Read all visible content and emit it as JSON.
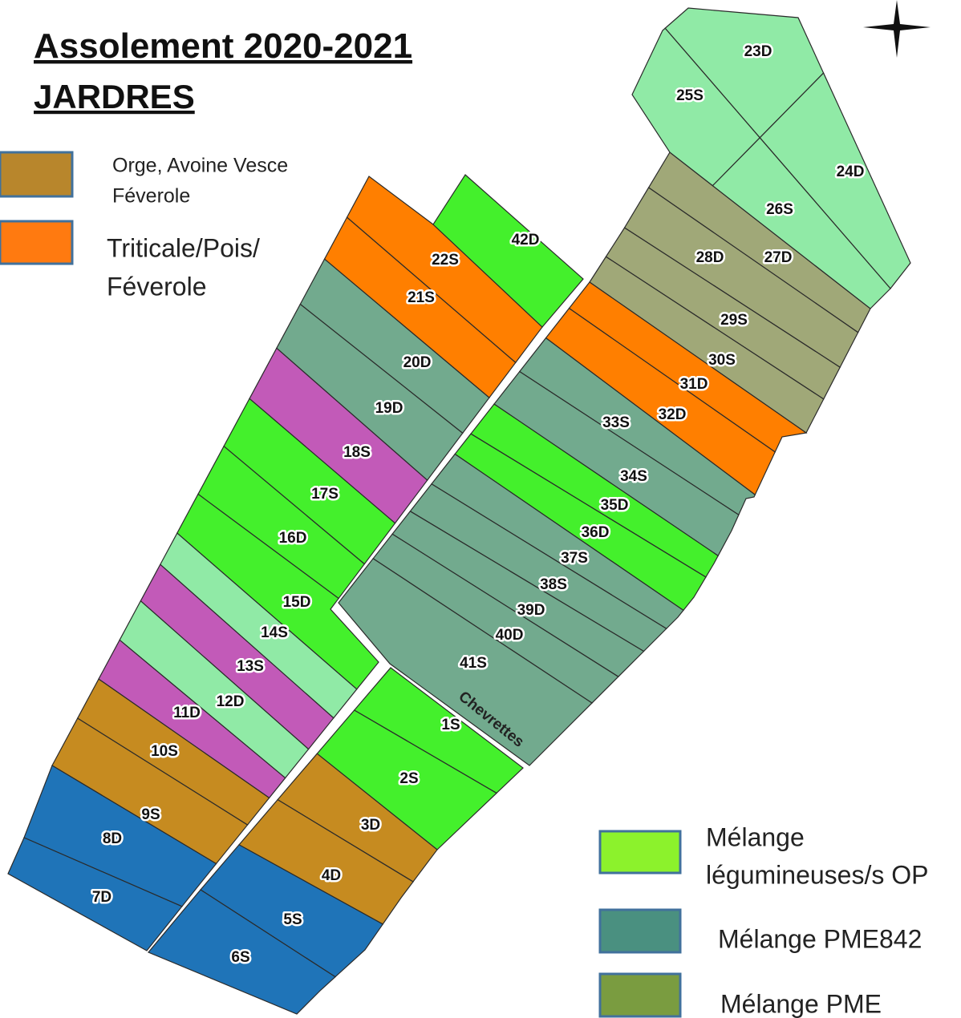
{
  "title": "Assolement 2020-2021",
  "location": "JARDRES",
  "road": "Chevrettes",
  "legend": [
    {
      "lines": [
        "Orge, Avoine Vesce",
        "Féverole"
      ],
      "color": "#b8862c"
    },
    {
      "lines": [
        "Triticale/Pois/",
        "Féverole"
      ],
      "color": "#ff7a10"
    },
    {
      "lines": [
        "Mélange",
        "légumineuses/s OP"
      ],
      "color": "#8cf22c"
    },
    {
      "lines": [
        "Mélange PME842"
      ],
      "color": "#4a9080"
    },
    {
      "lines": [
        "Mélange PME"
      ],
      "color": "#7a9c40"
    }
  ],
  "parcels": [
    {
      "label": "22S",
      "color": "#ff7f00"
    },
    {
      "label": "21S",
      "color": "#ff7f00"
    },
    {
      "label": "20D",
      "color": "#72aa8e"
    },
    {
      "label": "19D",
      "color": "#72aa8e"
    },
    {
      "label": "18S",
      "color": "#c25ab8"
    },
    {
      "label": "17S",
      "color": "#44f02c"
    },
    {
      "label": "16D",
      "color": "#44f02c"
    },
    {
      "label": "15D",
      "color": "#44f02c"
    },
    {
      "label": "14S",
      "color": "#90eaa6"
    },
    {
      "label": "13S",
      "color": "#c25ab8"
    },
    {
      "label": "12D",
      "color": "#90eaa6"
    },
    {
      "label": "11D",
      "color": "#c25ab8"
    },
    {
      "label": "10S",
      "color": "#c68b20"
    },
    {
      "label": "9S",
      "color": "#c68b20"
    },
    {
      "label": "8D",
      "color": "#1f74b8"
    },
    {
      "label": "7D",
      "color": "#1f74b8"
    },
    {
      "label": "42D",
      "color": "#44f02c"
    },
    {
      "label": "27D",
      "color": "#a0a878"
    },
    {
      "label": "28D",
      "color": "#a0a878"
    },
    {
      "label": "29S",
      "color": "#a0a878"
    },
    {
      "label": "30S",
      "color": "#a0a878"
    },
    {
      "label": "31D",
      "color": "#ff7f00"
    },
    {
      "label": "32D",
      "color": "#ff7f00"
    },
    {
      "label": "33S",
      "color": "#72aa8e"
    },
    {
      "label": "34S",
      "color": "#72aa8e"
    },
    {
      "label": "35D",
      "color": "#44f02c"
    },
    {
      "label": "36D",
      "color": "#44f02c"
    },
    {
      "label": "37S",
      "color": "#72aa8e"
    },
    {
      "label": "38S",
      "color": "#72aa8e"
    },
    {
      "label": "39D",
      "color": "#72aa8e"
    },
    {
      "label": "40D",
      "color": "#72aa8e"
    },
    {
      "label": "41S",
      "color": "#72aa8e"
    },
    {
      "label": "23D",
      "color": "#90eaa6"
    },
    {
      "label": "25S",
      "color": "#90eaa6"
    },
    {
      "label": "24D",
      "color": "#90eaa6"
    },
    {
      "label": "26S",
      "color": "#90eaa6"
    },
    {
      "label": "1S",
      "color": "#44f02c"
    },
    {
      "label": "2S",
      "color": "#44f02c"
    },
    {
      "label": "3D",
      "color": "#c68b20"
    },
    {
      "label": "4D",
      "color": "#c68b20"
    },
    {
      "label": "5S",
      "color": "#1f74b8"
    },
    {
      "label": "6S",
      "color": "#1f74b8"
    }
  ]
}
